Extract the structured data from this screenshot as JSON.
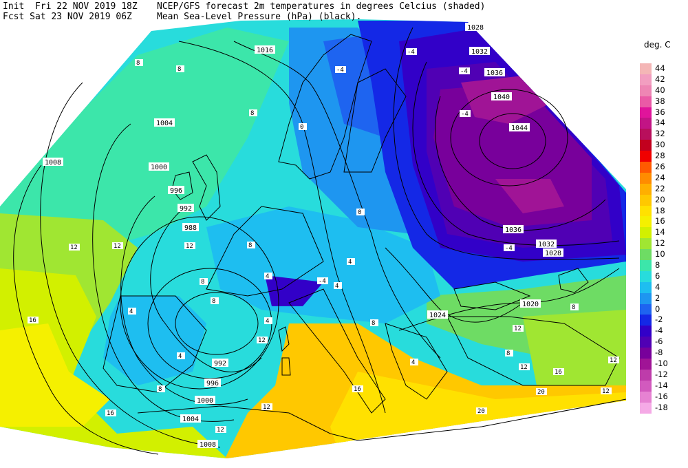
{
  "header": {
    "init_prefix": "Init",
    "init_time": "Fri 22 NOV 2019 18Z",
    "fcst_prefix": "Fcst",
    "fcst_time": "Sat 23 NOV 2019 06Z",
    "title_line1": "NCEP/GFS forecast 2m temperatures in degrees Celcius (shaded)",
    "title_line2": "Mean Sea-Level Pressure (hPa) (black)."
  },
  "legend": {
    "title": "deg. C",
    "items": [
      {
        "label": "44",
        "color": "#f4b6b6"
      },
      {
        "label": "42",
        "color": "#f29ec0"
      },
      {
        "label": "40",
        "color": "#ee86b4"
      },
      {
        "label": "38",
        "color": "#ea5aa6"
      },
      {
        "label": "36",
        "color": "#e0149b"
      },
      {
        "label": "34",
        "color": "#c21485"
      },
      {
        "label": "32",
        "color": "#b80f5c"
      },
      {
        "label": "30",
        "color": "#c2001e"
      },
      {
        "label": "28",
        "color": "#f00000"
      },
      {
        "label": "26",
        "color": "#ff5a00"
      },
      {
        "label": "24",
        "color": "#ff8c00"
      },
      {
        "label": "22",
        "color": "#ffaf00"
      },
      {
        "label": "20",
        "color": "#ffc800"
      },
      {
        "label": "18",
        "color": "#ffe100"
      },
      {
        "label": "16",
        "color": "#f5f000"
      },
      {
        "label": "14",
        "color": "#d2f000"
      },
      {
        "label": "12",
        "color": "#a0e632"
      },
      {
        "label": "10",
        "color": "#6edc64"
      },
      {
        "label": "8",
        "color": "#3ce6aa"
      },
      {
        "label": "6",
        "color": "#28dcdc"
      },
      {
        "label": "4",
        "color": "#1ebef0"
      },
      {
        "label": "2",
        "color": "#1e96f0"
      },
      {
        "label": "0",
        "color": "#1e64f0"
      },
      {
        "label": "-2",
        "color": "#1428e6"
      },
      {
        "label": "-4",
        "color": "#3200c8"
      },
      {
        "label": "-6",
        "color": "#5000b4"
      },
      {
        "label": "-8",
        "color": "#78009b"
      },
      {
        "label": "-10",
        "color": "#a01496"
      },
      {
        "label": "-12",
        "color": "#be3caa"
      },
      {
        "label": "-14",
        "color": "#d25abe"
      },
      {
        "label": "-16",
        "color": "#e682d2"
      },
      {
        "label": "-18",
        "color": "#f5aae6"
      }
    ]
  },
  "isobar_labels": [
    {
      "id": "p1016",
      "text": "1016"
    },
    {
      "id": "p1028a",
      "text": "1028"
    },
    {
      "id": "p1032a",
      "text": "1032"
    },
    {
      "id": "p1036a",
      "text": "1036"
    },
    {
      "id": "p1040",
      "text": "1040"
    },
    {
      "id": "p1044",
      "text": "1044"
    },
    {
      "id": "p1036b",
      "text": "1036"
    },
    {
      "id": "p1032b",
      "text": "1032"
    },
    {
      "id": "p1028b",
      "text": "1028"
    },
    {
      "id": "p1004a",
      "text": "1004"
    },
    {
      "id": "p1008a",
      "text": "1008"
    },
    {
      "id": "p1000a",
      "text": "1000"
    },
    {
      "id": "p996a",
      "text": "996"
    },
    {
      "id": "p992a",
      "text": "992"
    },
    {
      "id": "p988",
      "text": "988"
    },
    {
      "id": "p1020",
      "text": "1020"
    },
    {
      "id": "p1024",
      "text": "1024"
    },
    {
      "id": "p992b",
      "text": "992"
    },
    {
      "id": "p996b",
      "text": "996"
    },
    {
      "id": "p1000b",
      "text": "1000"
    },
    {
      "id": "p1004b",
      "text": "1004"
    },
    {
      "id": "p1008b",
      "text": "1008"
    }
  ],
  "temp_labels": [
    {
      "id": "t1",
      "text": "8"
    },
    {
      "id": "t2",
      "text": "8"
    },
    {
      "id": "t3",
      "text": "8"
    },
    {
      "id": "t4",
      "text": "-4"
    },
    {
      "id": "t5",
      "text": "-4"
    },
    {
      "id": "t6",
      "text": "-4"
    },
    {
      "id": "t7",
      "text": "-4"
    },
    {
      "id": "t8",
      "text": "0"
    },
    {
      "id": "t9",
      "text": "-4"
    },
    {
      "id": "t10",
      "text": "12"
    },
    {
      "id": "t11",
      "text": "12"
    },
    {
      "id": "t12",
      "text": "12"
    },
    {
      "id": "t13",
      "text": "8"
    },
    {
      "id": "t14",
      "text": "8"
    },
    {
      "id": "t15",
      "text": "4"
    },
    {
      "id": "t16",
      "text": "4"
    },
    {
      "id": "t17",
      "text": "4"
    },
    {
      "id": "t18",
      "text": "8"
    },
    {
      "id": "t19",
      "text": "16"
    },
    {
      "id": "t20",
      "text": "16"
    },
    {
      "id": "t21",
      "text": "4"
    },
    {
      "id": "t22",
      "text": "8"
    },
    {
      "id": "t23",
      "text": "12"
    },
    {
      "id": "t24",
      "text": "12"
    },
    {
      "id": "t25",
      "text": "16"
    },
    {
      "id": "t26",
      "text": "12"
    },
    {
      "id": "t27",
      "text": "8"
    },
    {
      "id": "t28",
      "text": "8"
    },
    {
      "id": "t29",
      "text": "12"
    },
    {
      "id": "t30",
      "text": "12"
    },
    {
      "id": "t31",
      "text": "16"
    },
    {
      "id": "t32",
      "text": "20"
    },
    {
      "id": "t33",
      "text": "20"
    },
    {
      "id": "t34",
      "text": "12"
    },
    {
      "id": "t35",
      "text": "4"
    },
    {
      "id": "t36",
      "text": "4"
    },
    {
      "id": "t37",
      "text": "0"
    },
    {
      "id": "t38",
      "text": "-4"
    },
    {
      "id": "t39",
      "text": "4"
    },
    {
      "id": "t40",
      "text": "8"
    },
    {
      "id": "t41",
      "text": "12"
    }
  ]
}
